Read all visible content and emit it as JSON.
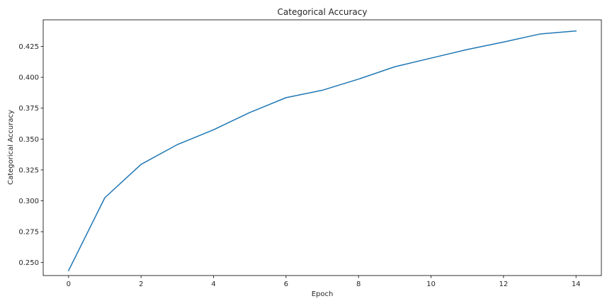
{
  "chart_data": {
    "type": "line",
    "title": "Categorical Accuracy",
    "xlabel": "Epoch",
    "ylabel": "Categorical Accuracy",
    "xlim": [
      -0.7,
      14.7
    ],
    "ylim": [
      0.2395,
      0.4465
    ],
    "xticks": [
      0,
      2,
      4,
      6,
      8,
      10,
      12,
      14
    ],
    "xtick_labels": [
      "0",
      "2",
      "4",
      "6",
      "8",
      "10",
      "12",
      "14"
    ],
    "yticks": [
      0.25,
      0.275,
      0.3,
      0.325,
      0.35,
      0.375,
      0.4,
      0.425
    ],
    "ytick_labels": [
      "0.250",
      "0.275",
      "0.300",
      "0.325",
      "0.350",
      "0.375",
      "0.400",
      "0.425"
    ],
    "grid": false,
    "legend": "none",
    "series": [
      {
        "color": "#1f77b4",
        "x": [
          0,
          1,
          2,
          3,
          4,
          5,
          6,
          7,
          8,
          9,
          10,
          11,
          12,
          13,
          14
        ],
        "y": [
          0.2435,
          0.3025,
          0.3295,
          0.3455,
          0.3575,
          0.3715,
          0.3835,
          0.3895,
          0.3985,
          0.4085,
          0.4155,
          0.4225,
          0.4285,
          0.435,
          0.4375
        ]
      }
    ]
  }
}
